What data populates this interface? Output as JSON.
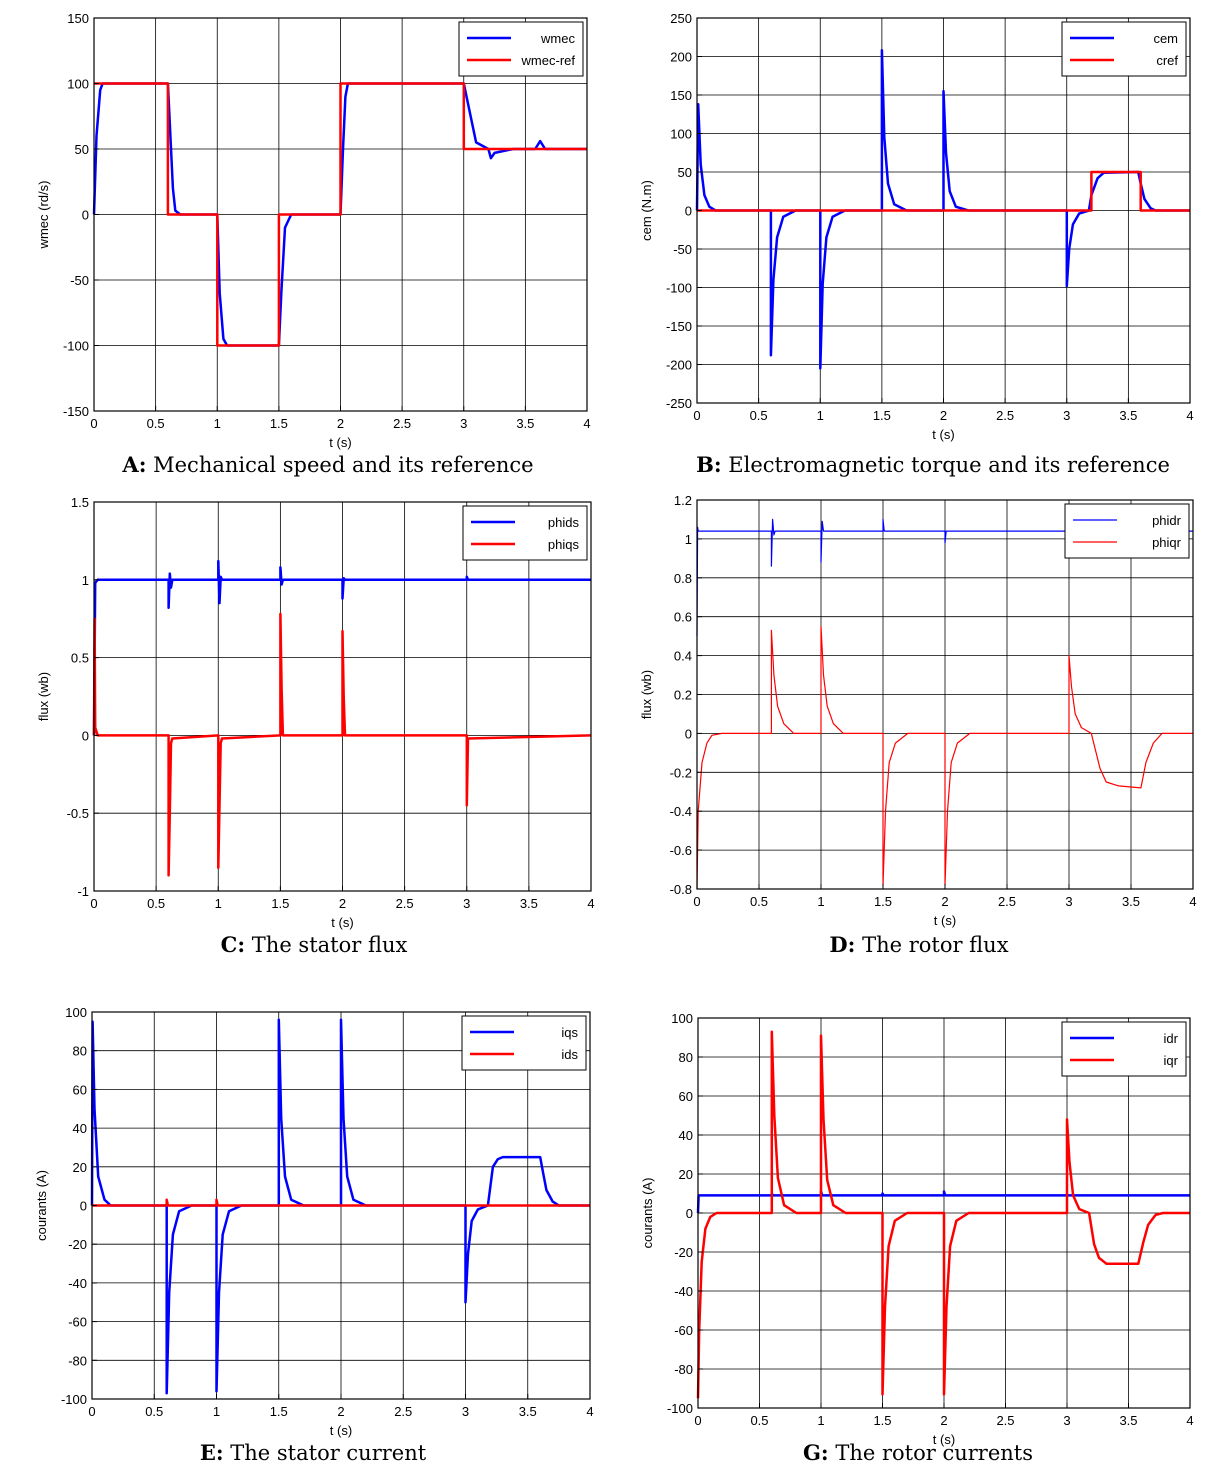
{
  "chart_data": [
    {
      "id": "A",
      "type": "line",
      "caption_letter": "A:",
      "caption_text": " Mechanical speed and its reference",
      "xlabel": "t (s)",
      "ylabel": "wmec (rd/s)",
      "xlim": [
        0,
        4
      ],
      "ylim": [
        -150,
        150
      ],
      "xticks": [
        0,
        0.5,
        1,
        1.5,
        2,
        2.5,
        3,
        3.5,
        4
      ],
      "yticks": [
        -150,
        -100,
        -50,
        0,
        50,
        100,
        150
      ],
      "grid": true,
      "legend": "top-right",
      "series": [
        {
          "name": "wmec",
          "color": "#0000ff",
          "width": 2.5,
          "x": [
            0,
            0.02,
            0.05,
            0.07,
            0.6,
            0.62,
            0.64,
            0.66,
            0.7,
            1.0,
            1.02,
            1.05,
            1.08,
            1.5,
            1.52,
            1.55,
            1.6,
            2.0,
            2.02,
            2.04,
            2.06,
            3.0,
            3.1,
            3.2,
            3.22,
            3.25,
            3.4,
            3.58,
            3.62,
            3.66,
            4.0
          ],
          "y": [
            0,
            60,
            95,
            100,
            100,
            60,
            20,
            3,
            0,
            0,
            -60,
            -95,
            -100,
            -100,
            -60,
            -10,
            0,
            0,
            50,
            90,
            100,
            100,
            55,
            50,
            43,
            47,
            50,
            50,
            56,
            50,
            50
          ]
        },
        {
          "name": "wmec-ref",
          "color": "#ff0000",
          "width": 2.5,
          "x": [
            0,
            0.6,
            0.6,
            1.0,
            1.0,
            1.5,
            1.5,
            2.0,
            2.0,
            3.0,
            3.0,
            4.0
          ],
          "y": [
            100,
            100,
            0,
            0,
            -100,
            -100,
            0,
            0,
            100,
            100,
            50,
            50
          ]
        }
      ]
    },
    {
      "id": "B",
      "type": "line",
      "caption_letter": "B:",
      "caption_text": " Electromagnetic torque and its reference",
      "xlabel": "t (s)",
      "ylabel": "cem (N.m)",
      "xlim": [
        0,
        4
      ],
      "ylim": [
        -250,
        250
      ],
      "xticks": [
        0,
        0.5,
        1,
        1.5,
        2,
        2.5,
        3,
        3.5,
        4
      ],
      "yticks": [
        -250,
        -200,
        -150,
        -100,
        -50,
        0,
        50,
        100,
        150,
        200,
        250
      ],
      "grid": true,
      "legend": "top-right",
      "series": [
        {
          "name": "cem",
          "color": "#0000ff",
          "width": 2.5,
          "x": [
            0,
            0.01,
            0.03,
            0.06,
            0.1,
            0.15,
            0.6,
            0.6,
            0.62,
            0.65,
            0.7,
            0.8,
            1.0,
            1.0,
            1.02,
            1.05,
            1.1,
            1.2,
            1.5,
            1.5,
            1.52,
            1.55,
            1.6,
            1.7,
            2.0,
            2.0,
            2.02,
            2.05,
            2.1,
            2.2,
            3.0,
            3.0,
            3.02,
            3.05,
            3.1,
            3.18,
            3.2,
            3.25,
            3.3,
            3.58,
            3.6,
            3.63,
            3.68,
            3.72,
            4.0
          ],
          "y": [
            0,
            138,
            60,
            20,
            5,
            0,
            0,
            -188,
            -90,
            -35,
            -8,
            0,
            0,
            -205,
            -95,
            -35,
            -8,
            0,
            0,
            208,
            95,
            35,
            8,
            0,
            0,
            155,
            75,
            25,
            5,
            0,
            0,
            -98,
            -50,
            -18,
            -4,
            0,
            20,
            42,
            49,
            50,
            35,
            15,
            3,
            0,
            0
          ]
        },
        {
          "name": "cref",
          "color": "#ff0000",
          "width": 2.5,
          "x": [
            0,
            3.2,
            3.2,
            3.6,
            3.6,
            4.0
          ],
          "y": [
            0,
            0,
            50,
            50,
            0,
            0
          ]
        }
      ]
    },
    {
      "id": "C",
      "type": "line",
      "caption_letter": "C:",
      "caption_text": " The stator flux",
      "xlabel": "t (s)",
      "ylabel": "flux (wb)",
      "xlim": [
        0,
        4
      ],
      "ylim": [
        -1,
        1.5
      ],
      "xticks": [
        0,
        0.5,
        1,
        1.5,
        2,
        2.5,
        3,
        3.5,
        4
      ],
      "yticks": [
        -1,
        -0.5,
        0,
        0.5,
        1,
        1.5
      ],
      "grid": true,
      "legend": "top-right",
      "series": [
        {
          "name": "phids",
          "color": "#0000ff",
          "width": 2.5,
          "x": [
            0,
            0.01,
            0.03,
            0.6,
            0.6,
            0.61,
            0.62,
            0.63,
            1.0,
            1.0,
            1.01,
            1.02,
            1.03,
            1.5,
            1.5,
            1.51,
            1.52,
            2.0,
            2.0,
            2.01,
            2.02,
            3.0,
            3.0,
            3.01,
            4.0
          ],
          "y": [
            0,
            0.98,
            1.0,
            1.0,
            0.82,
            1.04,
            0.95,
            1.0,
            1.0,
            1.12,
            0.85,
            1.02,
            1.0,
            1.0,
            1.08,
            0.97,
            1.0,
            1.0,
            0.88,
            1.01,
            1.0,
            1.0,
            1.02,
            1.0,
            1.0
          ]
        },
        {
          "name": "phiqs",
          "color": "#ff0000",
          "width": 2.5,
          "x": [
            0,
            0.005,
            0.01,
            0.03,
            0.6,
            0.6,
            0.61,
            0.62,
            0.63,
            1.0,
            1.0,
            1.01,
            1.02,
            1.03,
            1.5,
            1.5,
            1.51,
            1.52,
            2.0,
            2.0,
            2.01,
            2.02,
            3.0,
            3.0,
            3.01,
            4.0
          ],
          "y": [
            0,
            0.75,
            0.05,
            0.0,
            0.0,
            -0.9,
            -0.5,
            -0.05,
            -0.02,
            0.0,
            -0.85,
            -0.45,
            -0.05,
            -0.02,
            0.0,
            0.78,
            0.3,
            0.0,
            0.0,
            0.67,
            0.25,
            0.0,
            0.0,
            -0.45,
            -0.02,
            0.0
          ]
        }
      ]
    },
    {
      "id": "D",
      "type": "line",
      "caption_letter": "D:",
      "caption_text": " The rotor flux",
      "xlabel": "t (s)",
      "ylabel": "flux (wb)",
      "xlim": [
        0,
        4
      ],
      "ylim": [
        -0.8,
        1.2
      ],
      "xticks": [
        0,
        0.5,
        1,
        1.5,
        2,
        2.5,
        3,
        3.5,
        4
      ],
      "yticks": [
        -0.8,
        -0.6,
        -0.4,
        -0.2,
        0,
        0.2,
        0.4,
        0.6,
        0.8,
        1,
        1.2
      ],
      "grid": true,
      "legend": "top-right",
      "series": [
        {
          "name": "phidr",
          "color": "#0000ff",
          "width": 1.2,
          "x": [
            0,
            0.005,
            0.01,
            0.03,
            0.6,
            0.6,
            0.61,
            0.62,
            0.63,
            1.0,
            1.0,
            1.01,
            1.02,
            1.5,
            1.5,
            1.51,
            2.0,
            2.0,
            2.01,
            4.0
          ],
          "y": [
            0.5,
            1.06,
            1.04,
            1.04,
            1.04,
            0.86,
            1.1,
            1.02,
            1.04,
            1.04,
            0.88,
            1.09,
            1.04,
            1.04,
            1.1,
            1.04,
            1.04,
            0.98,
            1.04,
            1.04
          ]
        },
        {
          "name": "phiqr",
          "color": "#ff0000",
          "width": 1.2,
          "x": [
            0,
            0.01,
            0.04,
            0.08,
            0.12,
            0.2,
            0.6,
            0.6,
            0.62,
            0.65,
            0.7,
            0.78,
            1.0,
            1.0,
            1.02,
            1.05,
            1.1,
            1.18,
            1.5,
            1.5,
            1.52,
            1.55,
            1.6,
            1.7,
            2.0,
            2.0,
            2.02,
            2.05,
            2.1,
            2.2,
            3.0,
            3.0,
            3.02,
            3.05,
            3.1,
            3.18,
            3.25,
            3.3,
            3.4,
            3.58,
            3.62,
            3.68,
            3.75,
            4.0
          ],
          "y": [
            -0.8,
            -0.4,
            -0.15,
            -0.05,
            -0.01,
            0.0,
            0.0,
            0.53,
            0.3,
            0.14,
            0.05,
            0.0,
            0.0,
            0.55,
            0.3,
            0.14,
            0.05,
            0.0,
            0.0,
            -0.78,
            -0.4,
            -0.15,
            -0.05,
            0.0,
            0.0,
            -0.78,
            -0.4,
            -0.15,
            -0.05,
            0.0,
            0.0,
            0.4,
            0.24,
            0.1,
            0.03,
            0.0,
            -0.18,
            -0.25,
            -0.27,
            -0.28,
            -0.15,
            -0.05,
            0.0,
            0.0
          ]
        }
      ]
    },
    {
      "id": "E",
      "type": "line",
      "caption_letter": "E:",
      "caption_text": " The stator current",
      "xlabel": "t (s)",
      "ylabel": "courants (A)",
      "xlim": [
        0,
        4
      ],
      "ylim": [
        -100,
        100
      ],
      "xticks": [
        0,
        0.5,
        1,
        1.5,
        2,
        2.5,
        3,
        3.5,
        4
      ],
      "yticks": [
        -100,
        -80,
        -60,
        -40,
        -20,
        0,
        20,
        40,
        60,
        80,
        100
      ],
      "grid": true,
      "legend": "top-right",
      "series": [
        {
          "name": "iqs",
          "color": "#0000ff",
          "width": 2.5,
          "x": [
            0,
            0.005,
            0.02,
            0.05,
            0.1,
            0.15,
            0.6,
            0.6,
            0.62,
            0.65,
            0.7,
            0.8,
            1.0,
            1.0,
            1.02,
            1.05,
            1.1,
            1.2,
            1.5,
            1.5,
            1.52,
            1.55,
            1.6,
            1.7,
            2.0,
            2.0,
            2.02,
            2.05,
            2.1,
            2.2,
            3.0,
            3.0,
            3.02,
            3.05,
            3.1,
            3.18,
            3.2,
            3.22,
            3.26,
            3.3,
            3.6,
            3.62,
            3.65,
            3.7,
            3.75,
            4.0
          ],
          "y": [
            0,
            95,
            50,
            15,
            3,
            0,
            0,
            -97,
            -45,
            -15,
            -3,
            0,
            0,
            -96,
            -45,
            -15,
            -3,
            0,
            0,
            96,
            45,
            15,
            3,
            0,
            0,
            96,
            45,
            15,
            3,
            0,
            0,
            -50,
            -25,
            -8,
            -2,
            0,
            10,
            20,
            24,
            25,
            25,
            18,
            8,
            2,
            0,
            0
          ]
        },
        {
          "name": "ids",
          "color": "#ff0000",
          "width": 2.5,
          "x": [
            0,
            0.6,
            0.6,
            0.61,
            1.0,
            1.0,
            1.01,
            4.0
          ],
          "y": [
            0,
            0,
            3,
            0,
            0,
            3,
            0,
            0
          ]
        }
      ]
    },
    {
      "id": "G",
      "type": "line",
      "caption_letter": "G:",
      "caption_text": " The rotor currents",
      "xlabel": "t (s)",
      "ylabel": "courants (A)",
      "xlim": [
        0,
        4
      ],
      "ylim": [
        -100,
        100
      ],
      "xticks": [
        0,
        0.5,
        1,
        1.5,
        2,
        2.5,
        3,
        3.5,
        4
      ],
      "yticks": [
        -100,
        -80,
        -60,
        -40,
        -20,
        0,
        20,
        40,
        60,
        80,
        100
      ],
      "grid": true,
      "legend": "top-right",
      "series": [
        {
          "name": "idr",
          "color": "#0000ff",
          "width": 2.5,
          "x": [
            0,
            0.005,
            0.02,
            0.6,
            0.6,
            0.61,
            1.0,
            1.0,
            1.01,
            1.5,
            1.5,
            1.51,
            2.0,
            2.0,
            2.01,
            4.0
          ],
          "y": [
            0,
            9,
            9,
            9,
            10,
            9,
            9,
            11,
            9,
            9,
            10,
            9,
            9,
            11,
            9,
            9
          ]
        },
        {
          "name": "iqr",
          "color": "#ff0000",
          "width": 2.5,
          "x": [
            0,
            0.01,
            0.03,
            0.06,
            0.1,
            0.15,
            0.6,
            0.6,
            0.62,
            0.65,
            0.7,
            0.8,
            1.0,
            1.0,
            1.02,
            1.05,
            1.1,
            1.2,
            1.5,
            1.5,
            1.52,
            1.55,
            1.6,
            1.7,
            2.0,
            2.0,
            2.02,
            2.05,
            2.1,
            2.2,
            3.0,
            3.0,
            3.02,
            3.05,
            3.1,
            3.18,
            3.22,
            3.26,
            3.32,
            3.58,
            3.62,
            3.66,
            3.72,
            3.78,
            4.0
          ],
          "y": [
            -95,
            -60,
            -25,
            -8,
            -2,
            0,
            0,
            93,
            50,
            18,
            4,
            0,
            0,
            91,
            48,
            17,
            4,
            0,
            0,
            -93,
            -48,
            -17,
            -4,
            0,
            0,
            -93,
            -48,
            -17,
            -4,
            0,
            0,
            48,
            26,
            9,
            2,
            0,
            -16,
            -23,
            -26,
            -26,
            -15,
            -6,
            -1,
            0,
            0
          ]
        }
      ]
    }
  ]
}
